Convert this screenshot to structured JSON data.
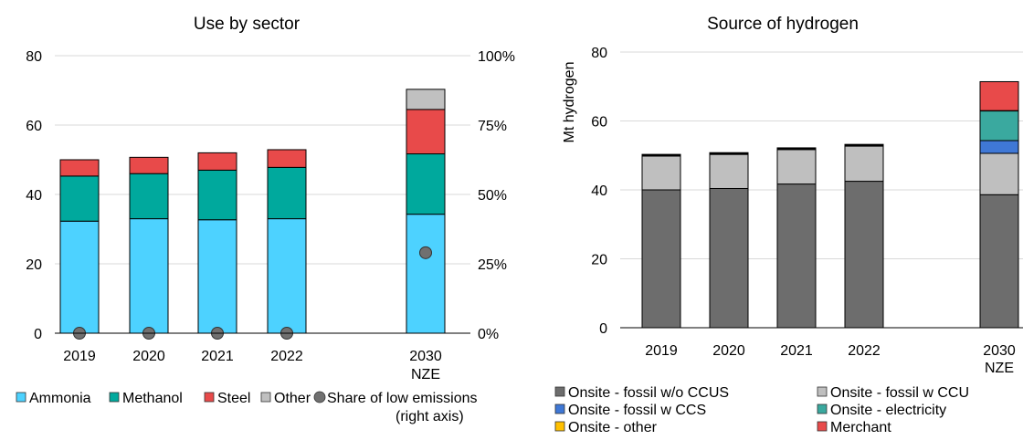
{
  "chart_data": [
    {
      "type": "bar",
      "stacked": true,
      "title": "Use by sector",
      "ylabel": "",
      "y2label": "",
      "categories": [
        "2019",
        "2020",
        "2021",
        "2022",
        "2030\nNZE"
      ],
      "ylim": [
        0,
        80
      ],
      "y2lim": [
        0,
        1
      ],
      "yticks": [
        "0",
        "20",
        "40",
        "60",
        "80"
      ],
      "y2ticks": [
        "0%",
        "25%",
        "50%",
        "75%",
        "100%"
      ],
      "grid": true,
      "legend_position": "bottom",
      "series": [
        {
          "name": "Ammonia",
          "color": "#4dd2ff",
          "values": [
            32.3,
            33.0,
            32.7,
            33.0,
            34.3
          ]
        },
        {
          "name": "Methanol",
          "color": "#00a99d",
          "values": [
            13.0,
            13.0,
            14.3,
            14.8,
            17.4
          ]
        },
        {
          "name": "Steel",
          "color": "#e84a4a",
          "values": [
            4.7,
            4.7,
            5.0,
            5.1,
            12.8
          ]
        },
        {
          "name": "Other",
          "color": "#c0c0c0",
          "values": [
            0.0,
            0.0,
            0.0,
            0.0,
            5.8
          ]
        }
      ],
      "scatter_series": {
        "name": "Share of low emissions\n(right axis)",
        "color": "#707070",
        "values": [
          0.0,
          0.0,
          0.0,
          0.0,
          0.29
        ]
      }
    },
    {
      "type": "bar",
      "stacked": true,
      "title": "Source of hydrogen",
      "ylabel": "Mt hydrogen",
      "categories": [
        "2019",
        "2020",
        "2021",
        "2022",
        "2030\nNZE"
      ],
      "ylim": [
        0,
        80
      ],
      "yticks": [
        "0",
        "20",
        "40",
        "60",
        "80"
      ],
      "grid": true,
      "legend_position": "bottom",
      "series": [
        {
          "name": "Onsite - fossil w/o CCUS",
          "color": "#6d6d6d",
          "values": [
            40.0,
            40.4,
            41.7,
            42.5,
            38.6
          ]
        },
        {
          "name": "Onsite - fossil w CCU",
          "color": "#bfbfbf",
          "values": [
            9.8,
            9.9,
            10.0,
            10.2,
            12.0
          ]
        },
        {
          "name": "Onsite - fossil w CCS",
          "color": "#3f78d6",
          "values": [
            0.2,
            0.2,
            0.2,
            0.2,
            3.7
          ]
        },
        {
          "name": "Onsite - electricity",
          "color": "#3aa99f",
          "values": [
            0.0,
            0.0,
            0.0,
            0.0,
            8.6
          ]
        },
        {
          "name": "Onsite - other",
          "color": "#ffc000",
          "values": [
            0.1,
            0.1,
            0.1,
            0.1,
            0.1
          ]
        },
        {
          "name": "Merchant",
          "color": "#e84a4a",
          "values": [
            0.2,
            0.2,
            0.2,
            0.2,
            8.4
          ]
        }
      ]
    }
  ]
}
